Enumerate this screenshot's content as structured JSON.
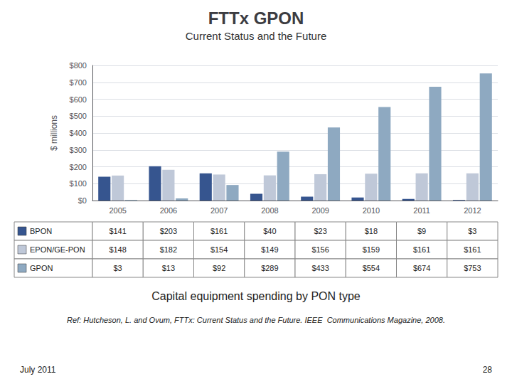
{
  "chart_data": {
    "type": "bar",
    "title": "FTTx GPON",
    "subtitle": "Current Status and the Future",
    "annotations": [
      "Capital equipment spending by PON type",
      "Ref: Hutcheson, L. and Ovum, FTTx: Current Status and the Future. IEEE  Communications Magazine, 2008.",
      "July 2011",
      "28"
    ],
    "categories": [
      "2005",
      "2006",
      "2007",
      "2008",
      "2009",
      "2010",
      "2011",
      "2012"
    ],
    "ylabel": "$ millions",
    "ylim": [
      0,
      800
    ],
    "yticks": [
      {
        "value": 0,
        "label": "$0"
      },
      {
        "value": 100,
        "label": "$100"
      },
      {
        "value": 200,
        "label": "$200"
      },
      {
        "value": 300,
        "label": "$300"
      },
      {
        "value": 400,
        "label": "$400"
      },
      {
        "value": 500,
        "label": "$500"
      },
      {
        "value": 600,
        "label": "$600"
      },
      {
        "value": 700,
        "label": "$700"
      },
      {
        "value": 800,
        "label": "$800"
      }
    ],
    "grid": true,
    "series": [
      {
        "name": "BPON",
        "color": "#36558F",
        "values": [
          141,
          203,
          161,
          40,
          23,
          18,
          9,
          3
        ],
        "value_labels": [
          "$141",
          "$203",
          "$161",
          "$40",
          "$23",
          "$18",
          "$9",
          "$3"
        ]
      },
      {
        "name": "EPON/GE-PON",
        "color": "#BFC8D8",
        "values": [
          148,
          182,
          154,
          149,
          156,
          159,
          161,
          161
        ],
        "value_labels": [
          "$148",
          "$182",
          "$154",
          "$149",
          "$156",
          "$159",
          "$161",
          "$161"
        ]
      },
      {
        "name": "GPON",
        "color": "#8EA9C1",
        "values": [
          3,
          13,
          92,
          289,
          433,
          554,
          674,
          753
        ],
        "value_labels": [
          "$3",
          "$13",
          "$92",
          "$289",
          "$433",
          "$554",
          "$674",
          "$753"
        ]
      }
    ]
  }
}
